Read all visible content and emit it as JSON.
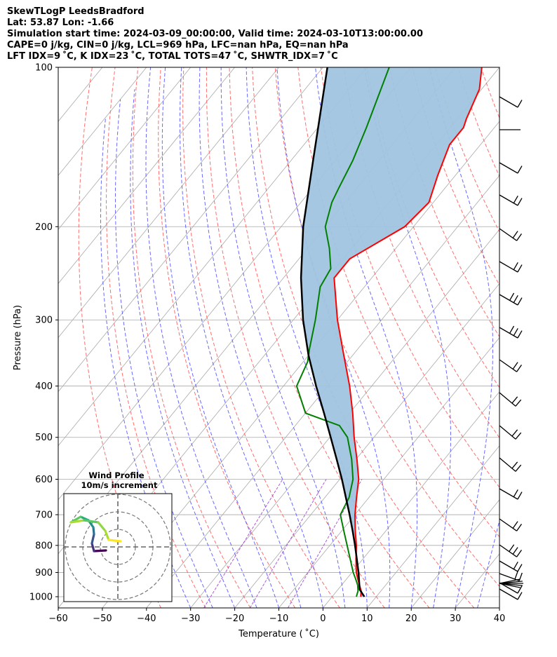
{
  "header": {
    "line1": "SkewTLogP LeedsBradford",
    "line2": "Lat: 53.87   Lon: -1.66",
    "line3": "Simulation start time: 2024-03-09_00:00:00, Valid time: 2024-03-10T13:00:00.00",
    "line4": "CAPE=0 j/kg, CIN=0 j/kg, LCL=969 hPa, LFC=nan hPa, EQ=nan hPa",
    "line5": "LFT IDX=9 ˚C, K IDX=23 ˚C, TOTAL TOTS=47 ˚C, SHWTR_IDX=7 ˚C"
  },
  "chart_data": {
    "type": "skew-t",
    "xlabel": "Temperature ( ˚C)",
    "ylabel": "Pressure (hPa)",
    "xlim": [
      -60,
      40
    ],
    "ylim": [
      1050,
      100
    ],
    "x_ticks": [
      -60,
      -50,
      -40,
      -30,
      -20,
      -10,
      0,
      10,
      20,
      30,
      40
    ],
    "x_tick_labels": [
      "−60",
      "−50",
      "−40",
      "−30",
      "−20",
      "−10",
      "0",
      "10",
      "20",
      "30",
      "40"
    ],
    "y_ticks": [
      1000,
      900,
      800,
      700,
      600,
      500,
      400,
      300,
      200,
      100
    ],
    "y_tick_labels": [
      "1000",
      "900",
      "800",
      "700",
      "600",
      "500",
      "400",
      "300",
      "200",
      "100"
    ],
    "colors": {
      "temperature": "#ff0000",
      "dewpoint": "#008000",
      "parcel": "#000000",
      "fill": "#a0c4e0",
      "dry_adiabat": "#ff5555",
      "moist_adiabat": "#4444ff",
      "mixing_ratio": "#9933cc",
      "isotherm": "#a9a9a9"
    },
    "temperature": {
      "p": [
        1000,
        975,
        950,
        925,
        900,
        850,
        800,
        750,
        700,
        650,
        600,
        550,
        500,
        450,
        400,
        350,
        300,
        250,
        230,
        200,
        180,
        160,
        140,
        130,
        125,
        110,
        100
      ],
      "t": [
        6.5,
        5.5,
        4.0,
        2.5,
        1.0,
        -1.5,
        -4.0,
        -7.0,
        -10.0,
        -12.8,
        -15.7,
        -19.8,
        -24.5,
        -29.3,
        -35.0,
        -42.0,
        -50.0,
        -58.5,
        -58.5,
        -52.0,
        -51.0,
        -54.0,
        -57.0,
        -57.0,
        -58.0,
        -60.5,
        -64.0
      ]
    },
    "dewpoint": {
      "p": [
        1000,
        975,
        950,
        925,
        900,
        850,
        800,
        750,
        700,
        650,
        600,
        550,
        500,
        475,
        450,
        400,
        360,
        340,
        300,
        260,
        240,
        220,
        200,
        180,
        170,
        150,
        130,
        100
      ],
      "td": [
        5.5,
        4.8,
        3.6,
        2.0,
        0.3,
        -2.8,
        -6.1,
        -9.6,
        -13.3,
        -14.5,
        -17.0,
        -21.0,
        -26.0,
        -30.0,
        -40.0,
        -47.0,
        -49.0,
        -51.0,
        -55.0,
        -60.0,
        -61.0,
        -65.0,
        -70.0,
        -73.0,
        -74.0,
        -76.0,
        -79.0,
        -85.0
      ]
    },
    "parcel": {
      "p": [
        1000,
        969,
        900,
        850,
        800,
        750,
        700,
        650,
        600,
        550,
        500,
        450,
        400,
        350,
        300,
        250,
        200,
        150,
        100
      ],
      "t": [
        7.3,
        4.9,
        1.5,
        -1.3,
        -4.3,
        -7.6,
        -11.2,
        -15.2,
        -19.5,
        -24.4,
        -29.8,
        -35.8,
        -42.6,
        -50.0,
        -57.8,
        -66.0,
        -75.0,
        -85.0,
        -99.0
      ]
    },
    "wind_profile": {
      "title": "Wind Profile",
      "subtitle": "10m/s increment"
    }
  }
}
